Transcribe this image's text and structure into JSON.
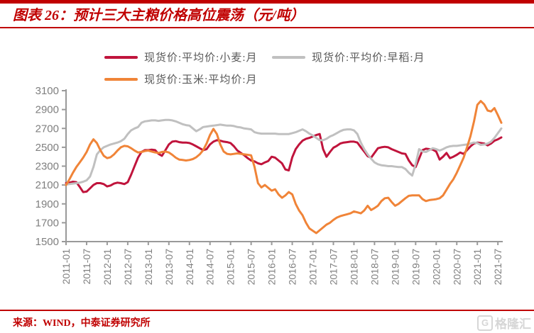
{
  "title": "图表 26：预计三大主粮价格高位震荡（元/吨）",
  "footer": {
    "source": "来源：WIND，中泰证券研究所",
    "watermark": "格隆汇",
    "watermark_icon": "G"
  },
  "colors": {
    "accent_red": "#c00000",
    "axis_gray": "#9a9a9a",
    "tick_label_gray": "#7f7f7f",
    "legend_text_gray": "#595959",
    "watermark_gray": "#d6d6d6"
  },
  "chart_data": {
    "type": "line",
    "title": "预计三大主粮价格高位震荡（元/吨）",
    "xlabel": "",
    "ylabel": "",
    "x_start": "2011-01",
    "x_end": "2021-08",
    "x_frequency": "monthly",
    "x_tick_interval_months": 6,
    "x_tick_labels": [
      "2011-01",
      "2011-07",
      "2012-01",
      "2012-07",
      "2013-01",
      "2013-07",
      "2014-01",
      "2014-07",
      "2015-01",
      "2015-07",
      "2016-01",
      "2016-07",
      "2017-01",
      "2017-07",
      "2018-01",
      "2018-07",
      "2019-01",
      "2019-07",
      "2020-01",
      "2020-07",
      "2021-01",
      "2021-07"
    ],
    "ylim": [
      1500,
      3100
    ],
    "y_ticks": [
      1500,
      1700,
      1900,
      2100,
      2300,
      2500,
      2700,
      2900,
      3100
    ],
    "grid": false,
    "legend_position": "top",
    "series": [
      {
        "name": "现货价:平均价:小麦:月",
        "color": "#c0143c",
        "values": [
          2120,
          2125,
          2135,
          2130,
          2080,
          2025,
          2030,
          2065,
          2100,
          2120,
          2120,
          2110,
          2085,
          2095,
          2115,
          2125,
          2120,
          2110,
          2130,
          2210,
          2300,
          2390,
          2450,
          2470,
          2470,
          2475,
          2470,
          2430,
          2410,
          2470,
          2530,
          2560,
          2565,
          2555,
          2550,
          2550,
          2545,
          2530,
          2510,
          2490,
          2470,
          2480,
          2530,
          2560,
          2575,
          2570,
          2560,
          2555,
          2545,
          2510,
          2465,
          2440,
          2415,
          2385,
          2360,
          2350,
          2330,
          2320,
          2340,
          2355,
          2400,
          2390,
          2360,
          2330,
          2265,
          2255,
          2395,
          2480,
          2530,
          2570,
          2590,
          2600,
          2615,
          2630,
          2640,
          2480,
          2400,
          2450,
          2495,
          2515,
          2540,
          2550,
          2555,
          2560,
          2560,
          2550,
          2500,
          2455,
          2405,
          2390,
          2440,
          2490,
          2500,
          2505,
          2500,
          2480,
          2465,
          2450,
          2435,
          2430,
          2360,
          2310,
          2290,
          2380,
          2470,
          2485,
          2480,
          2475,
          2455,
          2370,
          2400,
          2440,
          2385,
          2400,
          2420,
          2445,
          2430,
          2470,
          2510,
          2540,
          2550,
          2545,
          2540,
          2520,
          2540,
          2570,
          2585,
          2605
        ]
      },
      {
        "name": "现货价:平均价:早稻:月",
        "color": "#c0c0c0",
        "values": [
          2105,
          2110,
          2115,
          2120,
          2125,
          2135,
          2150,
          2190,
          2290,
          2425,
          2470,
          2500,
          2515,
          2530,
          2540,
          2550,
          2565,
          2590,
          2640,
          2680,
          2700,
          2715,
          2760,
          2775,
          2780,
          2785,
          2785,
          2780,
          2785,
          2790,
          2790,
          2785,
          2775,
          2760,
          2745,
          2735,
          2730,
          2700,
          2670,
          2690,
          2715,
          2720,
          2725,
          2730,
          2735,
          2740,
          2735,
          2730,
          2730,
          2725,
          2715,
          2710,
          2700,
          2695,
          2690,
          2660,
          2650,
          2645,
          2645,
          2645,
          2645,
          2645,
          2640,
          2640,
          2640,
          2640,
          2650,
          2660,
          2675,
          2690,
          2670,
          2645,
          2625,
          2600,
          2575,
          2575,
          2590,
          2615,
          2630,
          2650,
          2670,
          2685,
          2690,
          2690,
          2680,
          2640,
          2550,
          2480,
          2425,
          2380,
          2340,
          2320,
          2310,
          2305,
          2300,
          2300,
          2295,
          2290,
          2290,
          2270,
          2230,
          2200,
          2320,
          2480,
          2455,
          2450,
          2470,
          2490,
          2480,
          2465,
          2480,
          2500,
          2510,
          2515,
          2515,
          2520,
          2525,
          2530,
          2540,
          2550,
          2545,
          2525,
          2530,
          2540,
          2560,
          2600,
          2650,
          2700
        ]
      },
      {
        "name": "现货价:玉米:平均价:月",
        "color": "#f08438",
        "values": [
          2100,
          2160,
          2230,
          2290,
          2340,
          2390,
          2450,
          2530,
          2585,
          2545,
          2470,
          2410,
          2385,
          2395,
          2425,
          2465,
          2500,
          2515,
          2510,
          2490,
          2465,
          2445,
          2450,
          2460,
          2465,
          2455,
          2445,
          2440,
          2450,
          2455,
          2445,
          2420,
          2390,
          2370,
          2365,
          2360,
          2365,
          2375,
          2395,
          2425,
          2470,
          2540,
          2630,
          2695,
          2640,
          2530,
          2455,
          2430,
          2425,
          2430,
          2435,
          2430,
          2425,
          2420,
          2415,
          2290,
          2120,
          2075,
          2100,
          2070,
          2040,
          2055,
          2000,
          1965,
          1990,
          2025,
          2000,
          1900,
          1830,
          1780,
          1700,
          1640,
          1615,
          1590,
          1620,
          1650,
          1680,
          1700,
          1730,
          1755,
          1770,
          1780,
          1790,
          1800,
          1820,
          1810,
          1800,
          1830,
          1880,
          1835,
          1855,
          1880,
          1930,
          1960,
          1965,
          1920,
          1880,
          1900,
          1930,
          1960,
          1985,
          1990,
          1990,
          1990,
          1950,
          1930,
          1940,
          1945,
          1950,
          1960,
          1990,
          2050,
          2110,
          2160,
          2230,
          2310,
          2390,
          2500,
          2620,
          2770,
          2950,
          2990,
          2955,
          2890,
          2880,
          2915,
          2840,
          2760
        ]
      }
    ]
  }
}
